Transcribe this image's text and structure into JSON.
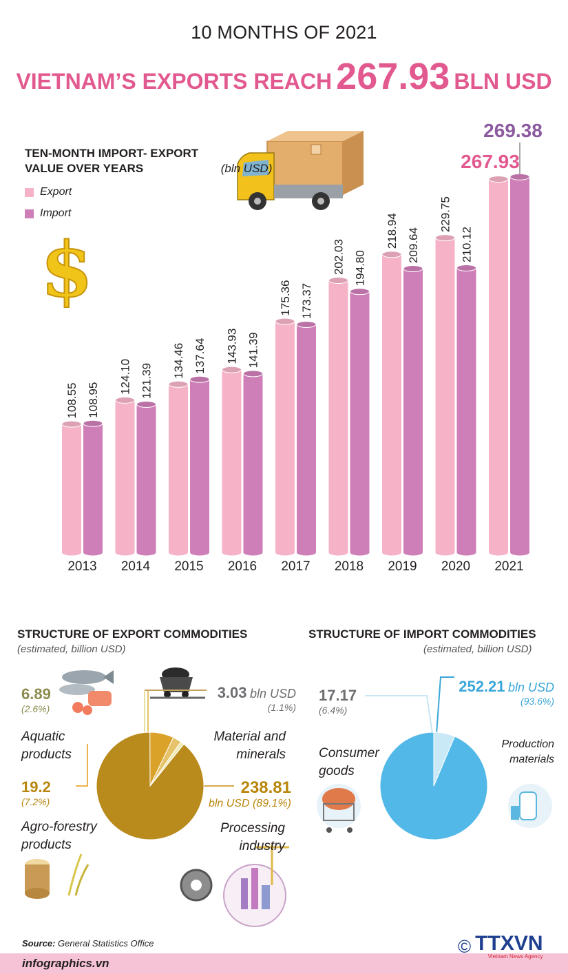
{
  "header": {
    "subtitle": "10 MONTHS OF 2021",
    "title_before": "VIETNAM’S EXPORTS REACH",
    "title_value": "267.93",
    "title_after": "BLN USD"
  },
  "colors": {
    "export": "#f6b3c8",
    "import": "#cf7fb8",
    "title_pink": "#e2598f",
    "value_purple": "#8c5a9e",
    "pie_gold": "#b98a1c",
    "pie_blue": "#52b8e8"
  },
  "chart_data": [
    {
      "type": "bar",
      "title": "TEN-MONTH IMPORT- EXPORT VALUE OVER YEARS",
      "unit": "(bln USD)",
      "categories": [
        "2013",
        "2014",
        "2015",
        "2016",
        "2017",
        "2018",
        "2019",
        "2020",
        "2021"
      ],
      "series": [
        {
          "name": "Export",
          "values": [
            108.55,
            124.1,
            134.46,
            143.93,
            175.36,
            202.03,
            218.94,
            229.75,
            267.93
          ],
          "labels": [
            "108.55",
            "124.10",
            "134.46",
            "143.93",
            "175.36",
            "202.03",
            "218.94",
            "229.75",
            "267.93"
          ]
        },
        {
          "name": "Import",
          "values": [
            108.95,
            121.39,
            137.64,
            141.39,
            173.37,
            194.8,
            209.64,
            210.12,
            269.38
          ],
          "labels": [
            "108.95",
            "121.39",
            "137.64",
            "141.39",
            "173.37",
            "194.80",
            "209.64",
            "210.12",
            "269.38"
          ]
        }
      ],
      "legend": "top-left",
      "grid": false
    },
    {
      "type": "pie",
      "title": "STRUCTURE OF EXPORT COMMODITIES",
      "note": "(estimated, billion USD)",
      "slices": [
        {
          "label": "Processing industry",
          "value": 238.81,
          "pct": 89.1
        },
        {
          "label": "Agro-forestry products",
          "value": 19.2,
          "pct": 7.2
        },
        {
          "label": "Aquatic products",
          "value": 6.89,
          "pct": 2.6
        },
        {
          "label": "Material and minerals",
          "value": 3.03,
          "pct": 1.1
        }
      ]
    },
    {
      "type": "pie",
      "title": "STRUCTURE OF IMPORT COMMODITIES",
      "note": "(estimated, billion USD)",
      "slices": [
        {
          "label": "Production materials",
          "value": 252.21,
          "pct": 93.6
        },
        {
          "label": "Consumer goods",
          "value": 17.17,
          "pct": 6.4
        }
      ]
    }
  ],
  "legend": {
    "export": "Export",
    "import": "Import"
  },
  "export_pie": {
    "aquatic": {
      "value": "6.89",
      "pct": "(2.6%)",
      "name1": "Aquatic",
      "name2": "products"
    },
    "agro": {
      "value": "19.2",
      "pct": "(7.2%)",
      "name1": "Agro-forestry",
      "name2": "products"
    },
    "mineral": {
      "value": "3.03",
      "unit": "bln USD",
      "pct": "(1.1%)",
      "name1": "Material and",
      "name2": "minerals"
    },
    "processing": {
      "value": "238.81",
      "unit_pct": "bln USD (89.1%)",
      "name1": "Processing",
      "name2": "industry"
    }
  },
  "import_pie": {
    "consumer": {
      "value": "17.17",
      "pct": "(6.4%)",
      "name1": "Consumer",
      "name2": "goods"
    },
    "production": {
      "value": "252.21",
      "unit": "bln USD",
      "pct": "(93.6%)",
      "name1": "Production",
      "name2": "materials"
    }
  },
  "footer": {
    "source_label": "Source:",
    "source_text": "General Statistics Office",
    "site": "infographics.vn",
    "copyright": "©",
    "agency": "TTXVN",
    "agency_sub": "Vietnam News Agency"
  },
  "icons": [
    "truck-icon",
    "dollar-icon",
    "fish-icon",
    "coal-cart-icon",
    "wood-rice-icon",
    "factory-gear-icon",
    "shopping-cart-icon",
    "textile-icon"
  ]
}
